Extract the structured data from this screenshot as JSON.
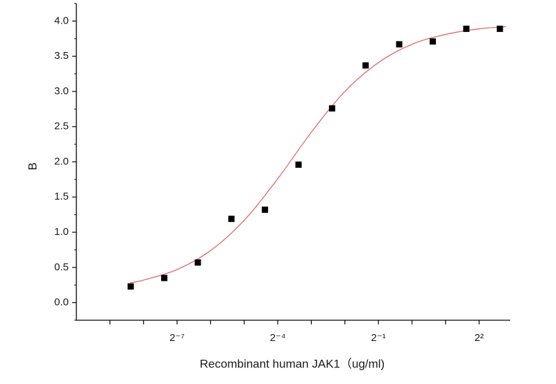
{
  "chart_data": {
    "type": "scatter",
    "x_label": "Recombinant human JAK1（ug/ml)",
    "y_label": "B",
    "xscale": "log",
    "x": [
      0.003,
      0.006,
      0.012,
      0.024,
      0.048,
      0.096,
      0.192,
      0.384,
      0.768,
      1.536,
      3.072,
      6.144
    ],
    "values": [
      0.23,
      0.35,
      0.57,
      1.19,
      1.32,
      1.96,
      2.76,
      3.37,
      3.67,
      3.71,
      3.89,
      3.89
    ],
    "color": "#000000",
    "fit_curve": {
      "color": "#e06a6a",
      "x": [
        0.00296,
        0.00390625,
        0.0078125,
        0.015625,
        0.03125,
        0.0625,
        0.125,
        0.25,
        0.5,
        1,
        2,
        4,
        6.96
      ],
      "y": [
        0.28,
        0.32,
        0.47,
        0.74,
        1.17,
        1.76,
        2.42,
        3.0,
        3.41,
        3.67,
        3.81,
        3.89,
        3.92
      ]
    },
    "xlim": [
      0.0009765625,
      7.6
    ],
    "ylim": [
      -0.25,
      4.25
    ],
    "xticks": [
      {
        "value": 0.0078125,
        "label": "2⁻⁷"
      },
      {
        "value": 0.0625,
        "label": "2⁻⁴"
      },
      {
        "value": 0.5,
        "label": "2⁻¹"
      },
      {
        "value": 4,
        "label": "2²"
      }
    ],
    "xminorticks": [
      0.001953125,
      0.00390625,
      0.015625,
      0.03125,
      0.125,
      0.25,
      1,
      2
    ],
    "yticks": [
      {
        "value": 0,
        "label": "0.0"
      },
      0.5,
      {
        "value": 1,
        "label": "1.0"
      },
      1.5,
      {
        "value": 2,
        "label": "2.0"
      },
      2.5,
      {
        "value": 3,
        "label": "3.0"
      },
      3.5,
      {
        "value": 4,
        "label": "4.0"
      }
    ],
    "yminorticks": [
      -0.25,
      0.25,
      0.75,
      1.25,
      1.75,
      2.25,
      2.75,
      3.25,
      3.75,
      4.25
    ],
    "grid": false
  }
}
